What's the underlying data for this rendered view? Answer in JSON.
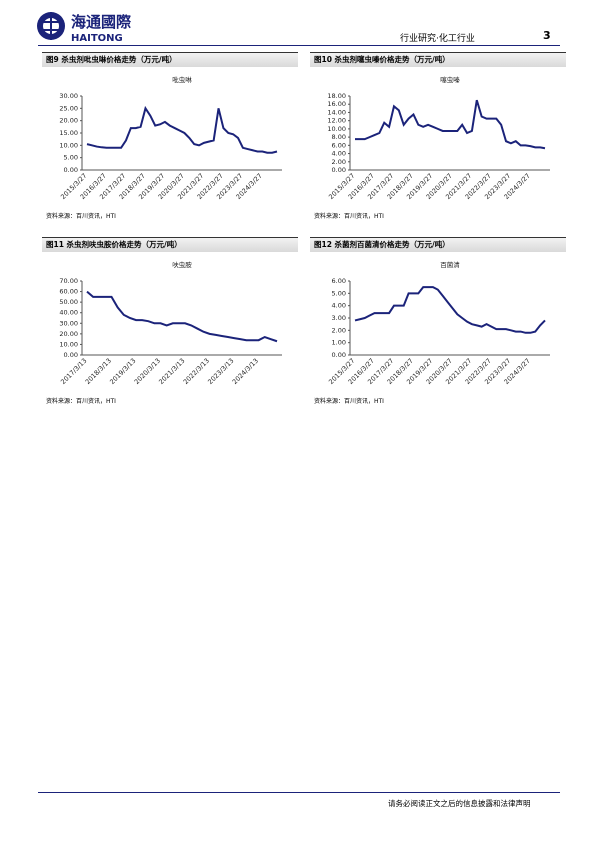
{
  "header": {
    "logo_cn": "海通國際",
    "logo_en": "HAITONG",
    "section": "行业研究·化工行业",
    "page": "3"
  },
  "figures": [
    {
      "caption": "图9 杀虫剂吡虫啉价格走势（万元/吨）",
      "source": "资料来源：百川资讯，HTI",
      "chart_data": {
        "type": "line",
        "title": "吡虫啉",
        "color": "#1b237a",
        "categories": [
          "2015/3/27",
          null,
          null,
          null,
          "2016/3/27",
          null,
          null,
          null,
          "2017/3/27",
          null,
          null,
          null,
          "2018/3/27",
          null,
          null,
          null,
          "2019/3/27",
          null,
          null,
          null,
          "2020/3/27",
          null,
          null,
          null,
          "2021/3/27",
          null,
          null,
          null,
          "2022/3/27",
          null,
          null,
          null,
          "2023/3/27",
          null,
          null,
          null,
          "2024/3/27",
          null,
          null,
          null
        ],
        "values": [
          10.5,
          10,
          9.5,
          9.2,
          9,
          9,
          9,
          9,
          12,
          17,
          17,
          17.5,
          25,
          22,
          18,
          18.5,
          19.5,
          18,
          17,
          16,
          15,
          13,
          10.5,
          10,
          11,
          11.5,
          12,
          25,
          17,
          15,
          14.5,
          13,
          9,
          8.5,
          8,
          7.5,
          7.5,
          7,
          7,
          7.5
        ],
        "ylim": [
          0,
          30
        ],
        "yticks": [
          {
            "value": 0,
            "label": "0.00"
          },
          {
            "value": 5,
            "label": "5.00"
          },
          {
            "value": 10,
            "label": "10.00"
          },
          {
            "value": 15,
            "label": "15.00"
          },
          {
            "value": 20,
            "label": "20.00"
          },
          {
            "value": 25,
            "label": "25.00"
          },
          {
            "value": 30,
            "label": "30.00"
          }
        ]
      }
    },
    {
      "caption": "图10 杀虫剂噻虫嗪价格走势（万元/吨）",
      "source": "资料来源：百川资讯，HTI",
      "chart_data": {
        "type": "line",
        "title": "噻虫嗪",
        "color": "#1b237a",
        "categories": [
          "2015/3/27",
          null,
          null,
          null,
          "2016/3/27",
          null,
          null,
          null,
          "2017/3/27",
          null,
          null,
          null,
          "2018/3/27",
          null,
          null,
          null,
          "2019/3/27",
          null,
          null,
          null,
          "2020/3/27",
          null,
          null,
          null,
          "2021/3/27",
          null,
          null,
          null,
          "2022/3/27",
          null,
          null,
          null,
          "2023/3/27",
          null,
          null,
          null,
          "2024/3/27",
          null,
          null,
          null
        ],
        "values": [
          7.5,
          7.5,
          7.5,
          8,
          8.5,
          9,
          11.5,
          10.5,
          15.5,
          14.5,
          11,
          12.5,
          13.5,
          11,
          10.5,
          11,
          10.5,
          10,
          9.5,
          9.5,
          9.5,
          9.5,
          11,
          9,
          9.5,
          17,
          13,
          12.5,
          12.5,
          12.5,
          11,
          7,
          6.5,
          7,
          6,
          6,
          5.8,
          5.5,
          5.5,
          5.3
        ],
        "ylim": [
          0,
          18
        ],
        "yticks": [
          {
            "value": 0,
            "label": "0.00"
          },
          {
            "value": 2,
            "label": "2.00"
          },
          {
            "value": 4,
            "label": "4.00"
          },
          {
            "value": 6,
            "label": "6.00"
          },
          {
            "value": 8,
            "label": "8.00"
          },
          {
            "value": 10,
            "label": "10.00"
          },
          {
            "value": 12,
            "label": "12.00"
          },
          {
            "value": 14,
            "label": "14.00"
          },
          {
            "value": 16,
            "label": "16.00"
          },
          {
            "value": 18,
            "label": "18.00"
          }
        ]
      }
    },
    {
      "caption": "图11 杀虫剂呋虫胺价格走势（万元/吨）",
      "source": "资料来源：百川资讯，HTI",
      "chart_data": {
        "type": "line",
        "title": "呋虫胺",
        "color": "#1b237a",
        "categories": [
          "2017/3/13",
          null,
          null,
          null,
          "2018/3/13",
          null,
          null,
          null,
          "2019/3/13",
          null,
          null,
          null,
          "2020/3/13",
          null,
          null,
          null,
          "2021/3/13",
          null,
          null,
          null,
          "2022/3/13",
          null,
          null,
          null,
          "2023/3/13",
          null,
          null,
          null,
          "2024/3/13",
          null,
          null,
          null
        ],
        "values": [
          60,
          55,
          55,
          55,
          55,
          45,
          38,
          35,
          33,
          33,
          32,
          30,
          30,
          28,
          30,
          30,
          30,
          28,
          25,
          22,
          20,
          19,
          18,
          17,
          16,
          15,
          14,
          14,
          14,
          17,
          15,
          13
        ],
        "ylim": [
          0,
          70
        ],
        "yticks": [
          {
            "value": 0,
            "label": "0.00"
          },
          {
            "value": 10,
            "label": "10.00"
          },
          {
            "value": 20,
            "label": "20.00"
          },
          {
            "value": 30,
            "label": "30.00"
          },
          {
            "value": 40,
            "label": "40.00"
          },
          {
            "value": 50,
            "label": "50.00"
          },
          {
            "value": 60,
            "label": "60.00"
          },
          {
            "value": 70,
            "label": "70.00"
          }
        ]
      }
    },
    {
      "caption": "图12 杀菌剂百菌清价格走势（万元/吨）",
      "source": "资料来源：百川资讯，HTI",
      "chart_data": {
        "type": "line",
        "title": "百菌清",
        "color": "#1b237a",
        "categories": [
          "2015/3/27",
          null,
          null,
          null,
          "2016/3/27",
          null,
          null,
          null,
          "2017/3/27",
          null,
          null,
          null,
          "2018/3/27",
          null,
          null,
          null,
          "2019/3/27",
          null,
          null,
          null,
          "2020/3/27",
          null,
          null,
          null,
          "2021/3/27",
          null,
          null,
          null,
          "2022/3/27",
          null,
          null,
          null,
          "2023/3/27",
          null,
          null,
          null,
          "2024/3/27",
          null,
          null,
          null
        ],
        "values": [
          2.8,
          2.9,
          3,
          3.2,
          3.4,
          3.4,
          3.4,
          3.4,
          4,
          4,
          4,
          5,
          5,
          5,
          5.5,
          5.5,
          5.5,
          5.3,
          4.8,
          4.3,
          3.8,
          3.3,
          3,
          2.7,
          2.5,
          2.4,
          2.3,
          2.5,
          2.3,
          2.1,
          2.1,
          2.1,
          2,
          1.9,
          1.9,
          1.8,
          1.8,
          1.9,
          2.4,
          2.8
        ],
        "ylim": [
          0,
          6
        ],
        "yticks": [
          {
            "value": 0,
            "label": "0.00"
          },
          {
            "value": 1,
            "label": "1.00"
          },
          {
            "value": 2,
            "label": "2.00"
          },
          {
            "value": 3,
            "label": "3.00"
          },
          {
            "value": 4,
            "label": "4.00"
          },
          {
            "value": 5,
            "label": "5.00"
          },
          {
            "value": 6,
            "label": "6.00"
          }
        ]
      }
    }
  ],
  "footer": "请务必阅读正文之后的信息披露和法律声明"
}
